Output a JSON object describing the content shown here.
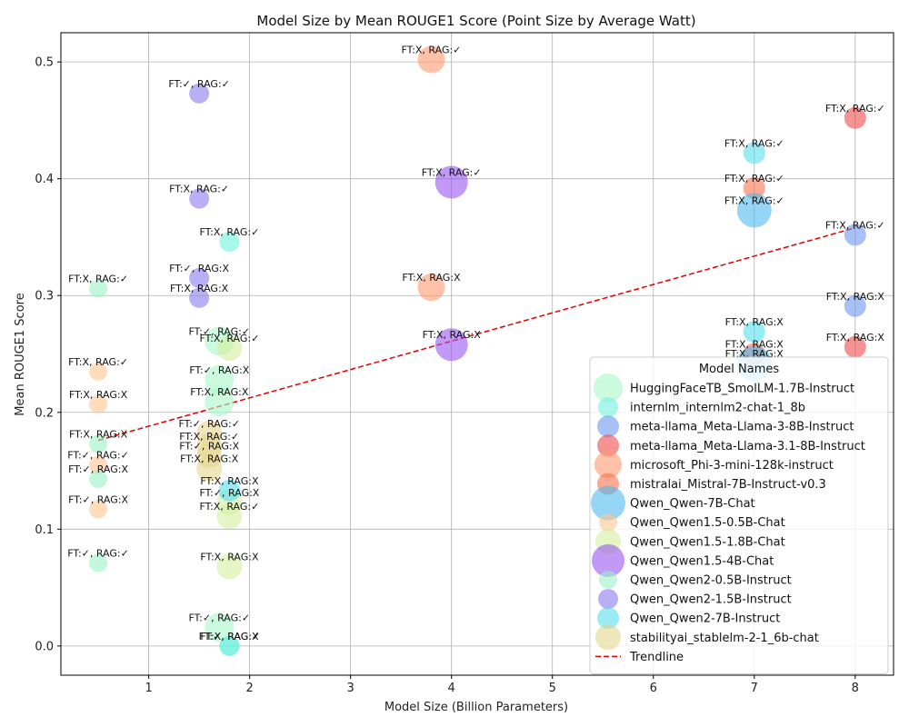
{
  "chart_data": {
    "type": "scatter",
    "title": "Model Size by Mean ROUGE1 Score (Point Size by Average Watt)",
    "xlabel": "Model Size (Billion Parameters)",
    "ylabel": "Mean ROUGE1 Score",
    "xlim": [
      0.13,
      8.38
    ],
    "ylim": [
      -0.025,
      0.525
    ],
    "xticks": [
      1,
      2,
      3,
      4,
      5,
      6,
      7,
      8
    ],
    "yticks": [
      0.0,
      0.1,
      0.2,
      0.3,
      0.4,
      0.5
    ],
    "grid": true,
    "legend": {
      "title": "Model Names",
      "placement": "lower right",
      "trendline_label": "Trendline"
    },
    "trendline": {
      "x": [
        0.5,
        8
      ],
      "y": [
        0.176,
        0.358
      ],
      "color": "#e00000"
    },
    "series": [
      {
        "name": "HuggingFaceTB_SmolLM-1.7B-Instruct",
        "color": "#a8f7c8",
        "size": 16,
        "points": [
          {
            "x": 1.7,
            "y": 0.261,
            "label": "FT:✓, RAG:✓"
          },
          {
            "x": 1.7,
            "y": 0.228,
            "label": "FT:✓, RAG:X"
          },
          {
            "x": 1.7,
            "y": 0.209,
            "label": "FT:X, RAG:X"
          },
          {
            "x": 1.7,
            "y": 0.016,
            "label": "FT:✓, RAG:✓"
          }
        ]
      },
      {
        "name": "internlm_internlm2-chat-1_8b",
        "color": "#6ff0dc",
        "size": 11,
        "points": [
          {
            "x": 1.8,
            "y": 0.346,
            "label": "FT:X, RAG:✓"
          },
          {
            "x": 1.8,
            "y": 0.0,
            "label": "FT:✓, RAG:✓"
          },
          {
            "x": 1.8,
            "y": 0.0,
            "label": "FT:X, RAG:X"
          }
        ]
      },
      {
        "name": "meta-llama_Meta-Llama-3-8B-Instruct",
        "color": "#6d97ee",
        "size": 12,
        "points": [
          {
            "x": 8.0,
            "y": 0.352,
            "label": "FT:X, RAG:✓"
          },
          {
            "x": 8.0,
            "y": 0.291,
            "label": "FT:X, RAG:X"
          }
        ]
      },
      {
        "name": "meta-llama_Meta-Llama-3.1-8B-Instruct",
        "color": "#ef4b4b",
        "size": 12,
        "points": [
          {
            "x": 8.0,
            "y": 0.452,
            "label": "FT:X, RAG:✓"
          },
          {
            "x": 8.0,
            "y": 0.256,
            "label": "FT:X, RAG:X"
          }
        ]
      },
      {
        "name": "microsoft_Phi-3-mini-128k-instruct",
        "color": "#ff9a70",
        "size": 15,
        "points": [
          {
            "x": 3.8,
            "y": 0.502,
            "label": "FT:X, RAG:✓"
          },
          {
            "x": 3.8,
            "y": 0.307,
            "label": "FT:X, RAG:X"
          }
        ]
      },
      {
        "name": "mistralai_Mistral-7B-Instruct-v0.3",
        "color": "#f7714f",
        "size": 12,
        "points": [
          {
            "x": 7.0,
            "y": 0.392,
            "label": "FT:X, RAG:✓"
          },
          {
            "x": 7.0,
            "y": 0.25,
            "label": "FT:X, RAG:X"
          }
        ]
      },
      {
        "name": "Qwen_Qwen-7B-Chat",
        "color": "#4fb9ee",
        "size": 19,
        "points": [
          {
            "x": 7.0,
            "y": 0.373,
            "label": "FT:X, RAG:✓"
          },
          {
            "x": 7.0,
            "y": 0.242,
            "label": "FT:X, RAG:X"
          }
        ]
      },
      {
        "name": "Qwen_Qwen1.5-0.5B-Chat",
        "color": "#ffc490",
        "size": 10,
        "points": [
          {
            "x": 0.5,
            "y": 0.235,
            "label": "FT:X, RAG:✓"
          },
          {
            "x": 0.5,
            "y": 0.207,
            "label": "FT:X, RAG:X"
          },
          {
            "x": 0.5,
            "y": 0.155,
            "label": "FT:✓, RAG:✓"
          },
          {
            "x": 0.5,
            "y": 0.117,
            "label": "FT:✓, RAG:X"
          }
        ]
      },
      {
        "name": "Qwen_Qwen1.5-1.8B-Chat",
        "color": "#d4ef9e",
        "size": 14,
        "points": [
          {
            "x": 1.8,
            "y": 0.255,
            "label": "FT:X, RAG:✓"
          },
          {
            "x": 1.8,
            "y": 0.123,
            "label": "FT:✓, RAG:X"
          },
          {
            "x": 1.8,
            "y": 0.111,
            "label": "FT:X, RAG:✓"
          },
          {
            "x": 1.8,
            "y": 0.068,
            "label": "FT:X, RAG:X"
          }
        ]
      },
      {
        "name": "Qwen_Qwen1.5-4B-Chat",
        "color": "#9a55f0",
        "size": 18,
        "points": [
          {
            "x": 4.0,
            "y": 0.397,
            "label": "FT:X, RAG:✓"
          },
          {
            "x": 4.0,
            "y": 0.258,
            "label": "FT:X, RAG:X"
          }
        ]
      },
      {
        "name": "Qwen_Qwen2-0.5B-Instruct",
        "color": "#9af2c6",
        "size": 10,
        "points": [
          {
            "x": 0.5,
            "y": 0.306,
            "label": "FT:X, RAG:✓"
          },
          {
            "x": 0.5,
            "y": 0.173,
            "label": "FT:X, RAG:X"
          },
          {
            "x": 0.5,
            "y": 0.143,
            "label": "FT:✓, RAG:X"
          },
          {
            "x": 0.5,
            "y": 0.071,
            "label": "FT:✓, RAG:✓"
          }
        ]
      },
      {
        "name": "Qwen_Qwen2-1.5B-Instruct",
        "color": "#8a7aef",
        "size": 11,
        "points": [
          {
            "x": 1.5,
            "y": 0.473,
            "label": "FT:✓, RAG:✓"
          },
          {
            "x": 1.5,
            "y": 0.383,
            "label": "FT:X, RAG:✓"
          },
          {
            "x": 1.5,
            "y": 0.315,
            "label": "FT:✓, RAG:X"
          },
          {
            "x": 1.5,
            "y": 0.298,
            "label": "FT:X, RAG:X"
          }
        ]
      },
      {
        "name": "Qwen_Qwen2-7B-Instruct",
        "color": "#55ddec",
        "size": 12,
        "points": [
          {
            "x": 7.0,
            "y": 0.422,
            "label": "FT:X, RAG:✓"
          },
          {
            "x": 7.0,
            "y": 0.269,
            "label": "FT:X, RAG:X"
          },
          {
            "x": 1.8,
            "y": 0.133,
            "label": "FT:X, RAG:X"
          }
        ]
      },
      {
        "name": "stabilityai_stablelm-2-1_6b-chat",
        "color": "#e6d68e",
        "size": 14,
        "points": [
          {
            "x": 1.6,
            "y": 0.182,
            "label": "FT:✓, RAG:✓"
          },
          {
            "x": 1.6,
            "y": 0.171,
            "label": "FT:X, RAG:✓"
          },
          {
            "x": 1.6,
            "y": 0.163,
            "label": "FT:✓, RAG:X"
          },
          {
            "x": 1.6,
            "y": 0.152,
            "label": "FT:X, RAG:X"
          }
        ]
      }
    ]
  }
}
